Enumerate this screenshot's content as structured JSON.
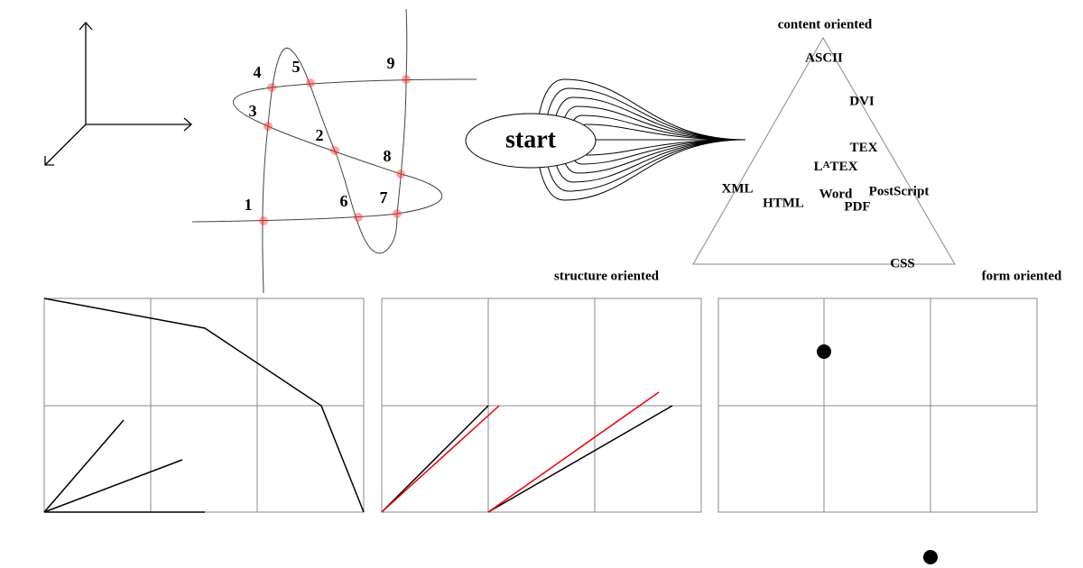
{
  "intersections": {
    "labels": [
      "1",
      "2",
      "3",
      "4",
      "5",
      "6",
      "7",
      "8",
      "9"
    ]
  },
  "flower": {
    "label": "start"
  },
  "triangle": {
    "corners": [
      "content oriented",
      "structure oriented",
      "form oriented"
    ],
    "formats": [
      "ASCII",
      "DVI",
      "TeX",
      "LaTeX",
      "XML",
      "HTML",
      "Word",
      "PostScript",
      "PDF",
      "CSS"
    ]
  }
}
